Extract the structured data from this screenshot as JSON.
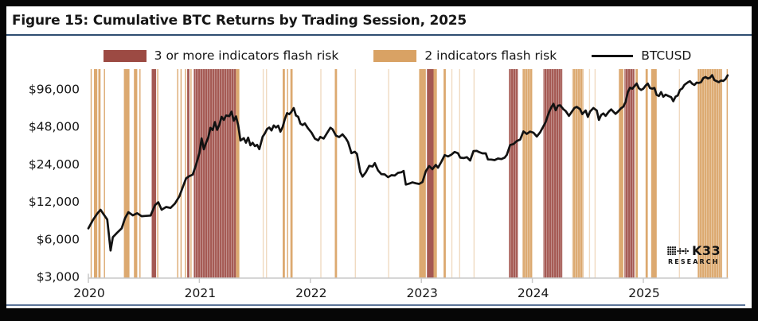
{
  "figure": {
    "title": "Figure 15: Cumulative BTC Returns by Trading Session, 2025"
  },
  "colors": {
    "risk3": "#9c4a43",
    "risk2": "#d9a264",
    "line": "#121212",
    "title_rule": "#2e4d71",
    "bottom_rule": "#5d7699",
    "axis": "#c8c8c8",
    "text": "#161616"
  },
  "legend": [
    {
      "label": "3 or more indicators flash risk",
      "type": "swatch",
      "color": "#9c4a43"
    },
    {
      "label": "2 indicators flash risk",
      "type": "swatch",
      "color": "#d9a264"
    },
    {
      "label": "BTCUSD",
      "type": "line",
      "color": "#121212"
    }
  ],
  "branding": {
    "name": "K33",
    "sub": "RESEARCH"
  },
  "chart_data": {
    "type": "line",
    "title": "Cumulative BTC Returns by Trading Session, 2025",
    "y_scale": "log2",
    "x_range": [
      2019.95,
      2025.78
    ],
    "y_range": [
      2900,
      138000
    ],
    "grid": false,
    "legend_position": "top",
    "x_ticks": [
      2020,
      2021,
      2022,
      2023,
      2024,
      2025
    ],
    "y_ticks": [
      {
        "value": 96000,
        "label": "$96,000"
      },
      {
        "value": 48000,
        "label": "$48,000"
      },
      {
        "value": 24000,
        "label": "$24,000"
      },
      {
        "value": 12000,
        "label": "$12,000"
      },
      {
        "value": 6000,
        "label": "$6,000"
      },
      {
        "value": 3000,
        "label": "$3,000"
      }
    ],
    "risk_bands": [
      {
        "start": 2020.02,
        "end": 2020.03,
        "level": "2"
      },
      {
        "start": 2020.05,
        "end": 2020.08,
        "level": "2"
      },
      {
        "start": 2020.09,
        "end": 2020.11,
        "level": "2"
      },
      {
        "start": 2020.14,
        "end": 2020.15,
        "level": "2"
      },
      {
        "start": 2020.32,
        "end": 2020.37,
        "level": "2"
      },
      {
        "start": 2020.41,
        "end": 2020.44,
        "level": "2"
      },
      {
        "start": 2020.46,
        "end": 2020.47,
        "level": "2"
      },
      {
        "start": 2020.57,
        "end": 2020.61,
        "level": "3+"
      },
      {
        "start": 2020.62,
        "end": 2020.63,
        "level": "2"
      },
      {
        "start": 2020.8,
        "end": 2020.81,
        "level": "2"
      },
      {
        "start": 2020.83,
        "end": 2020.84,
        "level": "2"
      },
      {
        "start": 2020.87,
        "end": 2020.88,
        "level": "2"
      },
      {
        "start": 2020.89,
        "end": 2020.91,
        "level": "3+"
      },
      {
        "start": 2020.92,
        "end": 2020.93,
        "level": "2"
      },
      {
        "start": 2020.95,
        "end": 2021.33,
        "level": "3+"
      },
      {
        "start": 2021.33,
        "end": 2021.36,
        "level": "2"
      },
      {
        "start": 2021.57,
        "end": 2021.58,
        "level": "2",
        "faint": true
      },
      {
        "start": 2021.6,
        "end": 2021.61,
        "level": "2",
        "faint": true
      },
      {
        "start": 2021.75,
        "end": 2021.77,
        "level": "2"
      },
      {
        "start": 2021.79,
        "end": 2021.8,
        "level": "2"
      },
      {
        "start": 2021.82,
        "end": 2021.84,
        "level": "2"
      },
      {
        "start": 2022.09,
        "end": 2022.1,
        "level": "2",
        "faint": true
      },
      {
        "start": 2022.22,
        "end": 2022.24,
        "level": "2"
      },
      {
        "start": 2022.4,
        "end": 2022.41,
        "level": "2",
        "faint": true
      },
      {
        "start": 2022.7,
        "end": 2022.71,
        "level": "2",
        "faint": true
      },
      {
        "start": 2022.98,
        "end": 2023.04,
        "level": "2"
      },
      {
        "start": 2023.05,
        "end": 2023.11,
        "level": "3+"
      },
      {
        "start": 2023.11,
        "end": 2023.14,
        "level": "2"
      },
      {
        "start": 2023.2,
        "end": 2023.22,
        "level": "2"
      },
      {
        "start": 2023.27,
        "end": 2023.28,
        "level": "2",
        "faint": true
      },
      {
        "start": 2023.34,
        "end": 2023.35,
        "level": "2",
        "faint": true
      },
      {
        "start": 2023.47,
        "end": 2023.48,
        "level": "2",
        "faint": true
      },
      {
        "start": 2023.79,
        "end": 2023.87,
        "level": "3+"
      },
      {
        "start": 2023.91,
        "end": 2024.0,
        "level": "2"
      },
      {
        "start": 2024.1,
        "end": 2024.27,
        "level": "3+"
      },
      {
        "start": 2024.36,
        "end": 2024.46,
        "level": "2"
      },
      {
        "start": 2024.51,
        "end": 2024.52,
        "level": "2",
        "faint": true
      },
      {
        "start": 2024.56,
        "end": 2024.57,
        "level": "2",
        "faint": true
      },
      {
        "start": 2024.78,
        "end": 2024.82,
        "level": "2"
      },
      {
        "start": 2024.83,
        "end": 2024.92,
        "level": "3+"
      },
      {
        "start": 2024.93,
        "end": 2024.95,
        "level": "2"
      },
      {
        "start": 2025.02,
        "end": 2025.04,
        "level": "2"
      },
      {
        "start": 2025.07,
        "end": 2025.12,
        "level": "2"
      },
      {
        "start": 2025.32,
        "end": 2025.33,
        "level": "2",
        "faint": true
      },
      {
        "start": 2025.49,
        "end": 2025.71,
        "level": "2"
      },
      {
        "start": 2025.75,
        "end": 2025.76,
        "level": "2"
      }
    ],
    "series": {
      "name": "BTCUSD",
      "points": [
        [
          2020.0,
          7300
        ],
        [
          2020.04,
          8500
        ],
        [
          2020.08,
          9600
        ],
        [
          2020.11,
          10300
        ],
        [
          2020.14,
          9400
        ],
        [
          2020.17,
          8600
        ],
        [
          2020.2,
          4850
        ],
        [
          2020.22,
          6200
        ],
        [
          2020.26,
          6750
        ],
        [
          2020.3,
          7300
        ],
        [
          2020.33,
          8800
        ],
        [
          2020.36,
          9850
        ],
        [
          2020.4,
          9300
        ],
        [
          2020.44,
          9650
        ],
        [
          2020.48,
          9150
        ],
        [
          2020.52,
          9200
        ],
        [
          2020.56,
          9250
        ],
        [
          2020.6,
          11200
        ],
        [
          2020.63,
          11850
        ],
        [
          2020.66,
          10300
        ],
        [
          2020.7,
          10850
        ],
        [
          2020.74,
          10650
        ],
        [
          2020.78,
          11550
        ],
        [
          2020.82,
          13200
        ],
        [
          2020.85,
          15600
        ],
        [
          2020.88,
          18400
        ],
        [
          2020.91,
          19200
        ],
        [
          2020.94,
          19700
        ],
        [
          2020.97,
          23600
        ],
        [
          2021.0,
          29300
        ],
        [
          2021.02,
          38500
        ],
        [
          2021.04,
          31500
        ],
        [
          2021.06,
          35500
        ],
        [
          2021.08,
          39200
        ],
        [
          2021.1,
          46800
        ],
        [
          2021.12,
          44900
        ],
        [
          2021.14,
          52100
        ],
        [
          2021.16,
          45100
        ],
        [
          2021.18,
          49600
        ],
        [
          2021.2,
          57400
        ],
        [
          2021.22,
          54200
        ],
        [
          2021.24,
          58900
        ],
        [
          2021.27,
          58100
        ],
        [
          2021.29,
          63200
        ],
        [
          2021.31,
          53400
        ],
        [
          2021.33,
          57800
        ],
        [
          2021.35,
          49000
        ],
        [
          2021.37,
          37000
        ],
        [
          2021.4,
          38700
        ],
        [
          2021.42,
          35600
        ],
        [
          2021.44,
          39100
        ],
        [
          2021.46,
          33900
        ],
        [
          2021.48,
          35500
        ],
        [
          2021.5,
          33400
        ],
        [
          2021.52,
          34200
        ],
        [
          2021.54,
          31600
        ],
        [
          2021.57,
          39800
        ],
        [
          2021.59,
          42200
        ],
        [
          2021.61,
          45800
        ],
        [
          2021.63,
          47100
        ],
        [
          2021.65,
          44600
        ],
        [
          2021.67,
          48900
        ],
        [
          2021.69,
          47100
        ],
        [
          2021.71,
          48700
        ],
        [
          2021.73,
          43600
        ],
        [
          2021.75,
          47600
        ],
        [
          2021.77,
          54900
        ],
        [
          2021.79,
          61400
        ],
        [
          2021.81,
          60300
        ],
        [
          2021.83,
          63100
        ],
        [
          2021.85,
          67500
        ],
        [
          2021.87,
          58900
        ],
        [
          2021.89,
          57400
        ],
        [
          2021.91,
          50600
        ],
        [
          2021.93,
          49300
        ],
        [
          2021.95,
          50800
        ],
        [
          2021.98,
          46300
        ],
        [
          2022.01,
          42900
        ],
        [
          2022.04,
          38400
        ],
        [
          2022.07,
          37100
        ],
        [
          2022.09,
          39600
        ],
        [
          2022.12,
          38400
        ],
        [
          2022.15,
          42400
        ],
        [
          2022.18,
          46900
        ],
        [
          2022.2,
          45600
        ],
        [
          2022.23,
          40600
        ],
        [
          2022.26,
          39500
        ],
        [
          2022.29,
          41500
        ],
        [
          2022.32,
          38500
        ],
        [
          2022.34,
          35900
        ],
        [
          2022.37,
          29300
        ],
        [
          2022.4,
          30100
        ],
        [
          2022.42,
          28900
        ],
        [
          2022.45,
          20700
        ],
        [
          2022.47,
          19000
        ],
        [
          2022.5,
          20600
        ],
        [
          2022.53,
          23200
        ],
        [
          2022.56,
          22900
        ],
        [
          2022.58,
          24400
        ],
        [
          2022.61,
          21300
        ],
        [
          2022.64,
          19900
        ],
        [
          2022.67,
          19800
        ],
        [
          2022.7,
          18800
        ],
        [
          2022.73,
          19500
        ],
        [
          2022.76,
          19400
        ],
        [
          2022.79,
          20400
        ],
        [
          2022.82,
          20600
        ],
        [
          2022.84,
          21100
        ],
        [
          2022.86,
          16400
        ],
        [
          2022.89,
          16700
        ],
        [
          2022.92,
          17100
        ],
        [
          2022.95,
          16800
        ],
        [
          2022.98,
          16600
        ],
        [
          2023.01,
          17200
        ],
        [
          2023.04,
          21000
        ],
        [
          2023.07,
          23100
        ],
        [
          2023.1,
          21800
        ],
        [
          2023.13,
          23600
        ],
        [
          2023.15,
          22400
        ],
        [
          2023.18,
          25000
        ],
        [
          2023.21,
          28300
        ],
        [
          2023.24,
          27600
        ],
        [
          2023.27,
          28500
        ],
        [
          2023.3,
          30000
        ],
        [
          2023.33,
          29250
        ],
        [
          2023.35,
          27000
        ],
        [
          2023.38,
          26800
        ],
        [
          2023.41,
          27250
        ],
        [
          2023.44,
          25600
        ],
        [
          2023.47,
          30500
        ],
        [
          2023.5,
          30600
        ],
        [
          2023.52,
          29900
        ],
        [
          2023.55,
          29200
        ],
        [
          2023.58,
          29200
        ],
        [
          2023.6,
          26100
        ],
        [
          2023.63,
          26050
        ],
        [
          2023.66,
          25800
        ],
        [
          2023.69,
          26550
        ],
        [
          2023.72,
          26300
        ],
        [
          2023.75,
          27000
        ],
        [
          2023.77,
          28400
        ],
        [
          2023.8,
          34100
        ],
        [
          2023.83,
          34700
        ],
        [
          2023.86,
          36700
        ],
        [
          2023.89,
          37750
        ],
        [
          2023.92,
          43800
        ],
        [
          2023.95,
          41900
        ],
        [
          2023.98,
          43700
        ],
        [
          2024.01,
          42800
        ],
        [
          2024.04,
          39900
        ],
        [
          2024.07,
          43100
        ],
        [
          2024.1,
          48200
        ],
        [
          2024.12,
          52100
        ],
        [
          2024.15,
          62400
        ],
        [
          2024.17,
          68300
        ],
        [
          2024.19,
          73000
        ],
        [
          2024.21,
          64900
        ],
        [
          2024.23,
          70400
        ],
        [
          2024.25,
          71000
        ],
        [
          2024.28,
          66000
        ],
        [
          2024.3,
          63900
        ],
        [
          2024.33,
          58400
        ],
        [
          2024.35,
          62100
        ],
        [
          2024.38,
          67800
        ],
        [
          2024.4,
          69000
        ],
        [
          2024.43,
          66100
        ],
        [
          2024.45,
          60400
        ],
        [
          2024.48,
          64600
        ],
        [
          2024.5,
          57300
        ],
        [
          2024.52,
          63400
        ],
        [
          2024.55,
          67600
        ],
        [
          2024.58,
          64500
        ],
        [
          2024.6,
          54200
        ],
        [
          2024.62,
          59400
        ],
        [
          2024.64,
          61100
        ],
        [
          2024.66,
          58400
        ],
        [
          2024.69,
          63400
        ],
        [
          2024.71,
          65800
        ],
        [
          2024.73,
          63100
        ],
        [
          2024.75,
          60600
        ],
        [
          2024.77,
          63000
        ],
        [
          2024.8,
          67400
        ],
        [
          2024.82,
          69300
        ],
        [
          2024.84,
          75600
        ],
        [
          2024.86,
          90500
        ],
        [
          2024.88,
          98300
        ],
        [
          2024.9,
          96400
        ],
        [
          2024.92,
          101100
        ],
        [
          2024.94,
          106200
        ],
        [
          2024.96,
          97100
        ],
        [
          2024.98,
          94300
        ],
        [
          2025.0,
          96600
        ],
        [
          2025.02,
          102100
        ],
        [
          2025.04,
          106100
        ],
        [
          2025.06,
          97600
        ],
        [
          2025.08,
          96500
        ],
        [
          2025.1,
          97900
        ],
        [
          2025.12,
          86100
        ],
        [
          2025.14,
          84400
        ],
        [
          2025.16,
          90600
        ],
        [
          2025.18,
          83100
        ],
        [
          2025.2,
          86500
        ],
        [
          2025.23,
          84000
        ],
        [
          2025.25,
          82500
        ],
        [
          2025.27,
          76600
        ],
        [
          2025.29,
          83200
        ],
        [
          2025.31,
          85100
        ],
        [
          2025.33,
          94400
        ],
        [
          2025.35,
          96900
        ],
        [
          2025.37,
          103600
        ],
        [
          2025.4,
          108400
        ],
        [
          2025.42,
          110900
        ],
        [
          2025.44,
          106000
        ],
        [
          2025.46,
          103400
        ],
        [
          2025.48,
          107900
        ],
        [
          2025.5,
          107400
        ],
        [
          2025.52,
          108900
        ],
        [
          2025.54,
          117400
        ],
        [
          2025.56,
          119900
        ],
        [
          2025.58,
          116600
        ],
        [
          2025.6,
          118100
        ],
        [
          2025.62,
          123900
        ],
        [
          2025.64,
          113100
        ],
        [
          2025.66,
          111000
        ],
        [
          2025.68,
          108900
        ],
        [
          2025.7,
          112400
        ],
        [
          2025.72,
          111400
        ],
        [
          2025.74,
          115400
        ],
        [
          2025.76,
          123600
        ]
      ]
    }
  }
}
